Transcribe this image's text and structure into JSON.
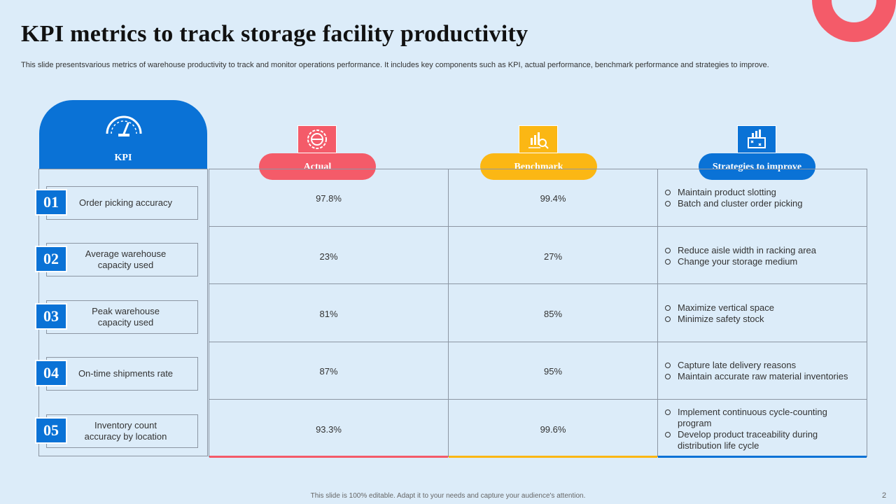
{
  "title": "KPI metrics to track storage facility productivity",
  "subtitle": "This slide presentsvarious metrics of warehouse productivity to track and monitor operations performance. It includes key components such as KPI, actual performance, benchmark performance and strategies to improve.",
  "headers": {
    "kpi": "KPI",
    "actual": "Actual",
    "benchmark": "Benchmark",
    "strategies": "Strategies to improve"
  },
  "icons": {
    "kpi": "gauge-icon",
    "actual": "target-badge-icon",
    "benchmark": "chart-magnifier-icon",
    "strategies": "strategy-board-icon"
  },
  "colors": {
    "blue": "#0a72d6",
    "red": "#f45b69",
    "yellow": "#fbb714",
    "background": "#dcecf9"
  },
  "rows": [
    {
      "num": "01",
      "kpi": "Order picking accuracy",
      "actual": "97.8%",
      "benchmark": "99.4%",
      "strategies": [
        "Maintain product slotting",
        "Batch and cluster order picking"
      ]
    },
    {
      "num": "02",
      "kpi": "Average warehouse capacity used",
      "actual": "23%",
      "benchmark": "27%",
      "strategies": [
        "Reduce aisle width in racking area",
        "Change your storage medium"
      ]
    },
    {
      "num": "03",
      "kpi": "Peak warehouse capacity used",
      "actual": "81%",
      "benchmark": "85%",
      "strategies": [
        "Maximize vertical space",
        "Minimize safety stock"
      ]
    },
    {
      "num": "04",
      "kpi": "On-time shipments rate",
      "actual": "87%",
      "benchmark": "95%",
      "strategies": [
        "Capture late delivery reasons",
        "Maintain accurate raw material inventories"
      ]
    },
    {
      "num": "05",
      "kpi": "Inventory count accuracy by location",
      "actual": "93.3%",
      "benchmark": "99.6%",
      "strategies": [
        "Implement continuous cycle-counting program",
        "Develop product traceability during distribution life cycle"
      ]
    }
  ],
  "footer": "This slide is 100% editable. Adapt it to your needs and capture your audience's attention.",
  "page_number": "2"
}
